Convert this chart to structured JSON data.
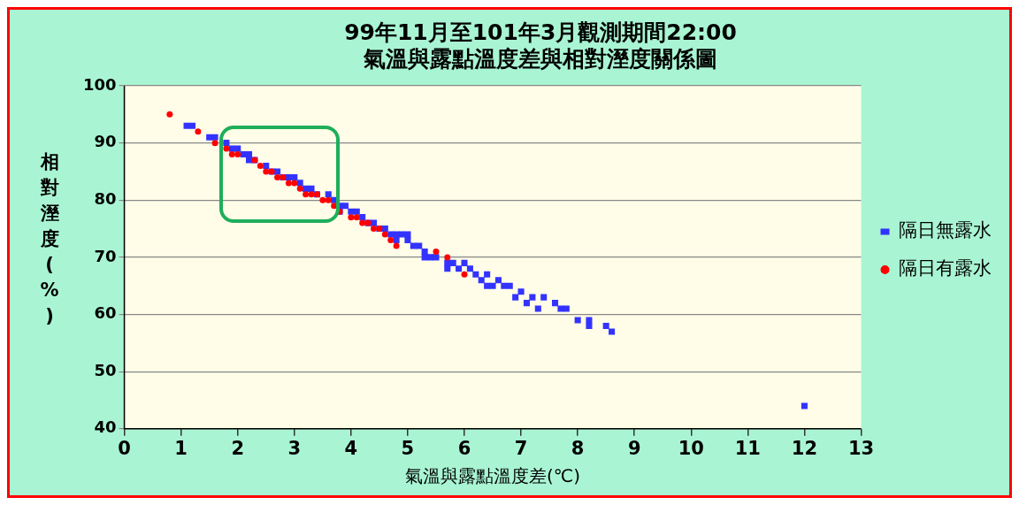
{
  "chart_data": {
    "type": "scatter",
    "title": [
      "99年11月至101年3月觀測期間22:00",
      "氣溫與露點溫度差與相對溼度關係圖"
    ],
    "xlabel": "氣溫與露點溫度差(℃)",
    "ylabel": "相對溼度(%)",
    "xlim": [
      0,
      13
    ],
    "xticks": [
      0,
      1,
      2,
      3,
      4,
      5,
      6,
      7,
      8,
      9,
      10,
      11,
      12,
      13
    ],
    "ylim": [
      40,
      100
    ],
    "yticks": [
      40,
      50,
      60,
      70,
      80,
      90,
      100
    ],
    "grid": "y",
    "legend": "right",
    "series": [
      {
        "name": "隔日無露水",
        "color": "#3333ff",
        "marker": "square",
        "x": [
          1.1,
          1.2,
          1.5,
          1.6,
          1.8,
          1.9,
          2.0,
          2.1,
          2.2,
          2.2,
          2.3,
          2.5,
          2.6,
          2.7,
          2.8,
          2.9,
          3.0,
          3.1,
          3.2,
          3.3,
          3.4,
          3.6,
          3.7,
          3.8,
          3.8,
          3.9,
          4.0,
          4.1,
          4.2,
          4.3,
          4.4,
          4.5,
          4.6,
          4.7,
          4.8,
          4.9,
          5.0,
          4.8,
          5.0,
          5.1,
          5.2,
          5.3,
          5.3,
          5.4,
          5.5,
          5.7,
          5.7,
          5.8,
          5.9,
          6.0,
          6.1,
          6.2,
          6.3,
          6.4,
          6.4,
          6.5,
          6.6,
          6.7,
          6.8,
          6.9,
          7.0,
          7.1,
          7.2,
          7.3,
          7.4,
          7.6,
          7.7,
          7.8,
          8.0,
          8.2,
          8.2,
          8.5,
          8.6,
          12.0
        ],
        "values": [
          93,
          93,
          91,
          91,
          90,
          89,
          89,
          88,
          87,
          88,
          87,
          86,
          85,
          85,
          84,
          84,
          84,
          83,
          82,
          82,
          81,
          81,
          80,
          79,
          78,
          79,
          78,
          78,
          77,
          76,
          76,
          75,
          75,
          74,
          74,
          74,
          74,
          73,
          73,
          72,
          72,
          71,
          70,
          70,
          70,
          69,
          68,
          69,
          68,
          69,
          68,
          67,
          66,
          67,
          65,
          65,
          66,
          65,
          65,
          63,
          64,
          62,
          63,
          61,
          63,
          62,
          61,
          61,
          59,
          58,
          59,
          58,
          57,
          44
        ]
      },
      {
        "name": "隔日有露水",
        "color": "#ff0000",
        "marker": "circle",
        "x": [
          0.8,
          1.3,
          1.6,
          1.8,
          1.9,
          2.0,
          2.3,
          2.4,
          2.5,
          2.6,
          2.7,
          2.8,
          2.9,
          3.0,
          3.1,
          3.2,
          3.3,
          3.4,
          3.5,
          3.6,
          3.7,
          3.8,
          4.0,
          4.1,
          4.2,
          4.3,
          4.4,
          4.5,
          4.6,
          4.7,
          4.8,
          5.5,
          5.7,
          6.0
        ],
        "values": [
          95,
          92,
          90,
          89,
          88,
          88,
          87,
          86,
          85,
          85,
          84,
          84,
          83,
          83,
          82,
          81,
          81,
          81,
          80,
          80,
          79,
          78,
          77,
          77,
          76,
          76,
          75,
          75,
          74,
          73,
          72,
          71,
          70,
          67
        ]
      }
    ]
  }
}
